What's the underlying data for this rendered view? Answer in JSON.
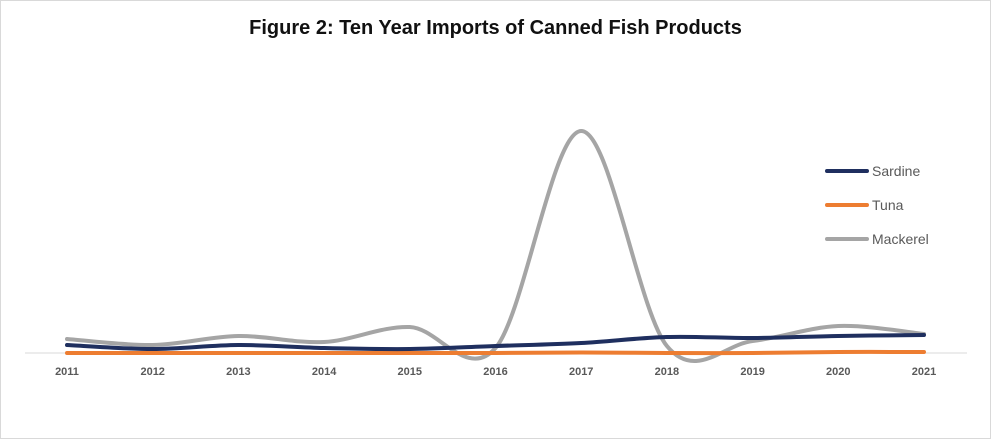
{
  "chart_data": {
    "type": "line",
    "title": "Figure 2: Ten Year Imports of Canned Fish Products",
    "x": [
      "2011",
      "2012",
      "2013",
      "2014",
      "2015",
      "2016",
      "2017",
      "2018",
      "2019",
      "2020",
      "2021"
    ],
    "series": [
      {
        "name": "Sardine",
        "color": "#1f2f5f",
        "values": [
          8,
          4,
          8,
          5,
          4,
          7,
          10,
          16,
          15,
          17,
          18
        ]
      },
      {
        "name": "Tuna",
        "color": "#ed7d31",
        "values": [
          0,
          0,
          0,
          0,
          0,
          0,
          0.5,
          0,
          0,
          1,
          1
        ]
      },
      {
        "name": "Mackerel",
        "color": "#a5a5a5",
        "values": [
          14,
          8,
          17,
          11,
          26,
          5,
          222,
          7,
          12,
          27,
          19
        ]
      }
    ],
    "ylim": [
      0,
      240
    ],
    "grid": false,
    "legend_position": "right"
  }
}
